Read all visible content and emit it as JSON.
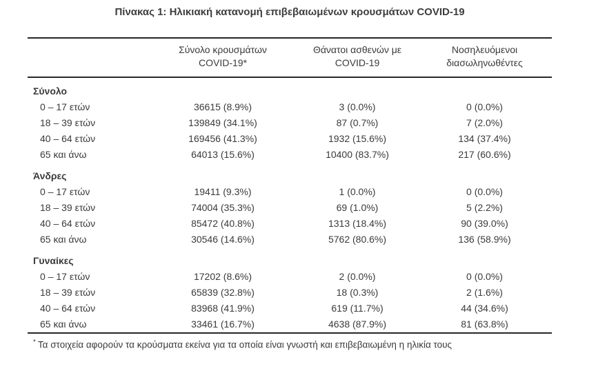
{
  "page": {
    "title": "Πίνακας 1: Ηλικιακή κατανομή επιβεβαιωμένων κρουσμάτων COVID-19"
  },
  "table": {
    "columns": [
      "",
      "Σύνολο κρουσμάτων\nCOVID-19*",
      "Θάνατοι ασθενών με\nCOVID-19",
      "Νοσηλευόμενοι\nδιασωληνωθέντες"
    ],
    "sections": [
      {
        "label": "Σύνολο",
        "rows": [
          {
            "age": "0 – 17 ετών",
            "cases": "36615 (8.9%)",
            "deaths": "3 (0.0%)",
            "intubated": "0 (0.0%)"
          },
          {
            "age": "18 – 39 ετών",
            "cases": "139849 (34.1%)",
            "deaths": "87 (0.7%)",
            "intubated": "7 (2.0%)"
          },
          {
            "age": "40 – 64 ετών",
            "cases": "169456 (41.3%)",
            "deaths": "1932 (15.6%)",
            "intubated": "134 (37.4%)"
          },
          {
            "age": "65 και άνω",
            "cases": "64013 (15.6%)",
            "deaths": "10400 (83.7%)",
            "intubated": "217 (60.6%)"
          }
        ]
      },
      {
        "label": "Άνδρες",
        "rows": [
          {
            "age": "0 – 17 ετών",
            "cases": "19411 (9.3%)",
            "deaths": "1 (0.0%)",
            "intubated": "0 (0.0%)"
          },
          {
            "age": "18 – 39 ετών",
            "cases": "74004 (35.3%)",
            "deaths": "69 (1.0%)",
            "intubated": "5 (2.2%)"
          },
          {
            "age": "40 – 64 ετών",
            "cases": "85472 (40.8%)",
            "deaths": "1313 (18.4%)",
            "intubated": "90 (39.0%)"
          },
          {
            "age": "65 και άνω",
            "cases": "30546 (14.6%)",
            "deaths": "5762 (80.6%)",
            "intubated": "136 (58.9%)"
          }
        ]
      },
      {
        "label": "Γυναίκες",
        "rows": [
          {
            "age": "0 – 17 ετών",
            "cases": "17202 (8.6%)",
            "deaths": "2 (0.0%)",
            "intubated": "0 (0.0%)"
          },
          {
            "age": "18 – 39 ετών",
            "cases": "65839 (32.8%)",
            "deaths": "18 (0.3%)",
            "intubated": "2 (1.6%)"
          },
          {
            "age": "40 – 64 ετών",
            "cases": "83968 (41.9%)",
            "deaths": "619 (11.7%)",
            "intubated": "44 (34.6%)"
          },
          {
            "age": "65 και άνω",
            "cases": "33461 (16.7%)",
            "deaths": "4638 (87.9%)",
            "intubated": "81 (63.8%)"
          }
        ]
      }
    ]
  },
  "footnote": {
    "marker": "*",
    "text": "Τα στοιχεία αφορούν τα κρούσματα εκείνα για τα οποία είναι γνωστή και επιβεβαιωμένη η ηλικία τους"
  },
  "colors": {
    "text": "#3a3a3a",
    "rule": "#262626",
    "background": "#ffffff"
  }
}
